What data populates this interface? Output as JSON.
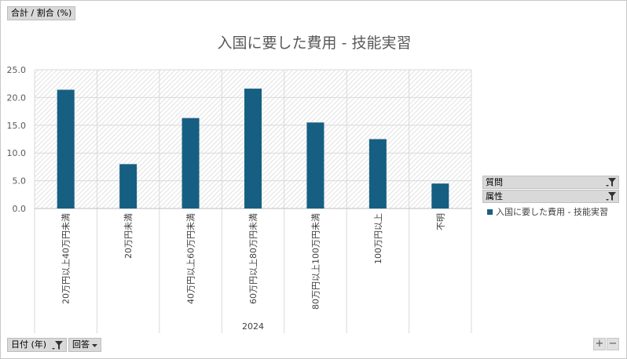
{
  "field_buttons": {
    "value_field": "合計 / 割合 (%)",
    "axis_field_date": "日付 (年)",
    "axis_field_answer": "回答"
  },
  "legend_filters": {
    "question": "質問",
    "attribute": "属性"
  },
  "colors": {
    "bar": "#165f82",
    "pill_bg": "#d9d9d9",
    "title_text": "#595959"
  },
  "icons": [
    "filter-icon",
    "dropdown-arrow-icon",
    "plus-icon",
    "minus-icon"
  ],
  "zoom": {
    "plus": "+",
    "minus": "−"
  },
  "chart_data": {
    "type": "bar",
    "title": "入国に要した費用 - 技能実習",
    "categories": [
      "20万円以上40万円未満",
      "20万円未満",
      "40万円以上60万円未満",
      "60万円以上80万円未満",
      "80万円以上100万円未満",
      "100万円以上",
      "不明"
    ],
    "group_label": "2024",
    "series": [
      {
        "name": "入国に要した費用 - 技能実習",
        "values": [
          21.4,
          8.0,
          16.3,
          21.6,
          15.5,
          12.5,
          4.5
        ]
      }
    ],
    "ylim": [
      0,
      25
    ],
    "yticks": [
      "0.0",
      "5.0",
      "10.0",
      "15.0",
      "20.0",
      "25.0"
    ],
    "grid": true,
    "legend_position": "right"
  }
}
